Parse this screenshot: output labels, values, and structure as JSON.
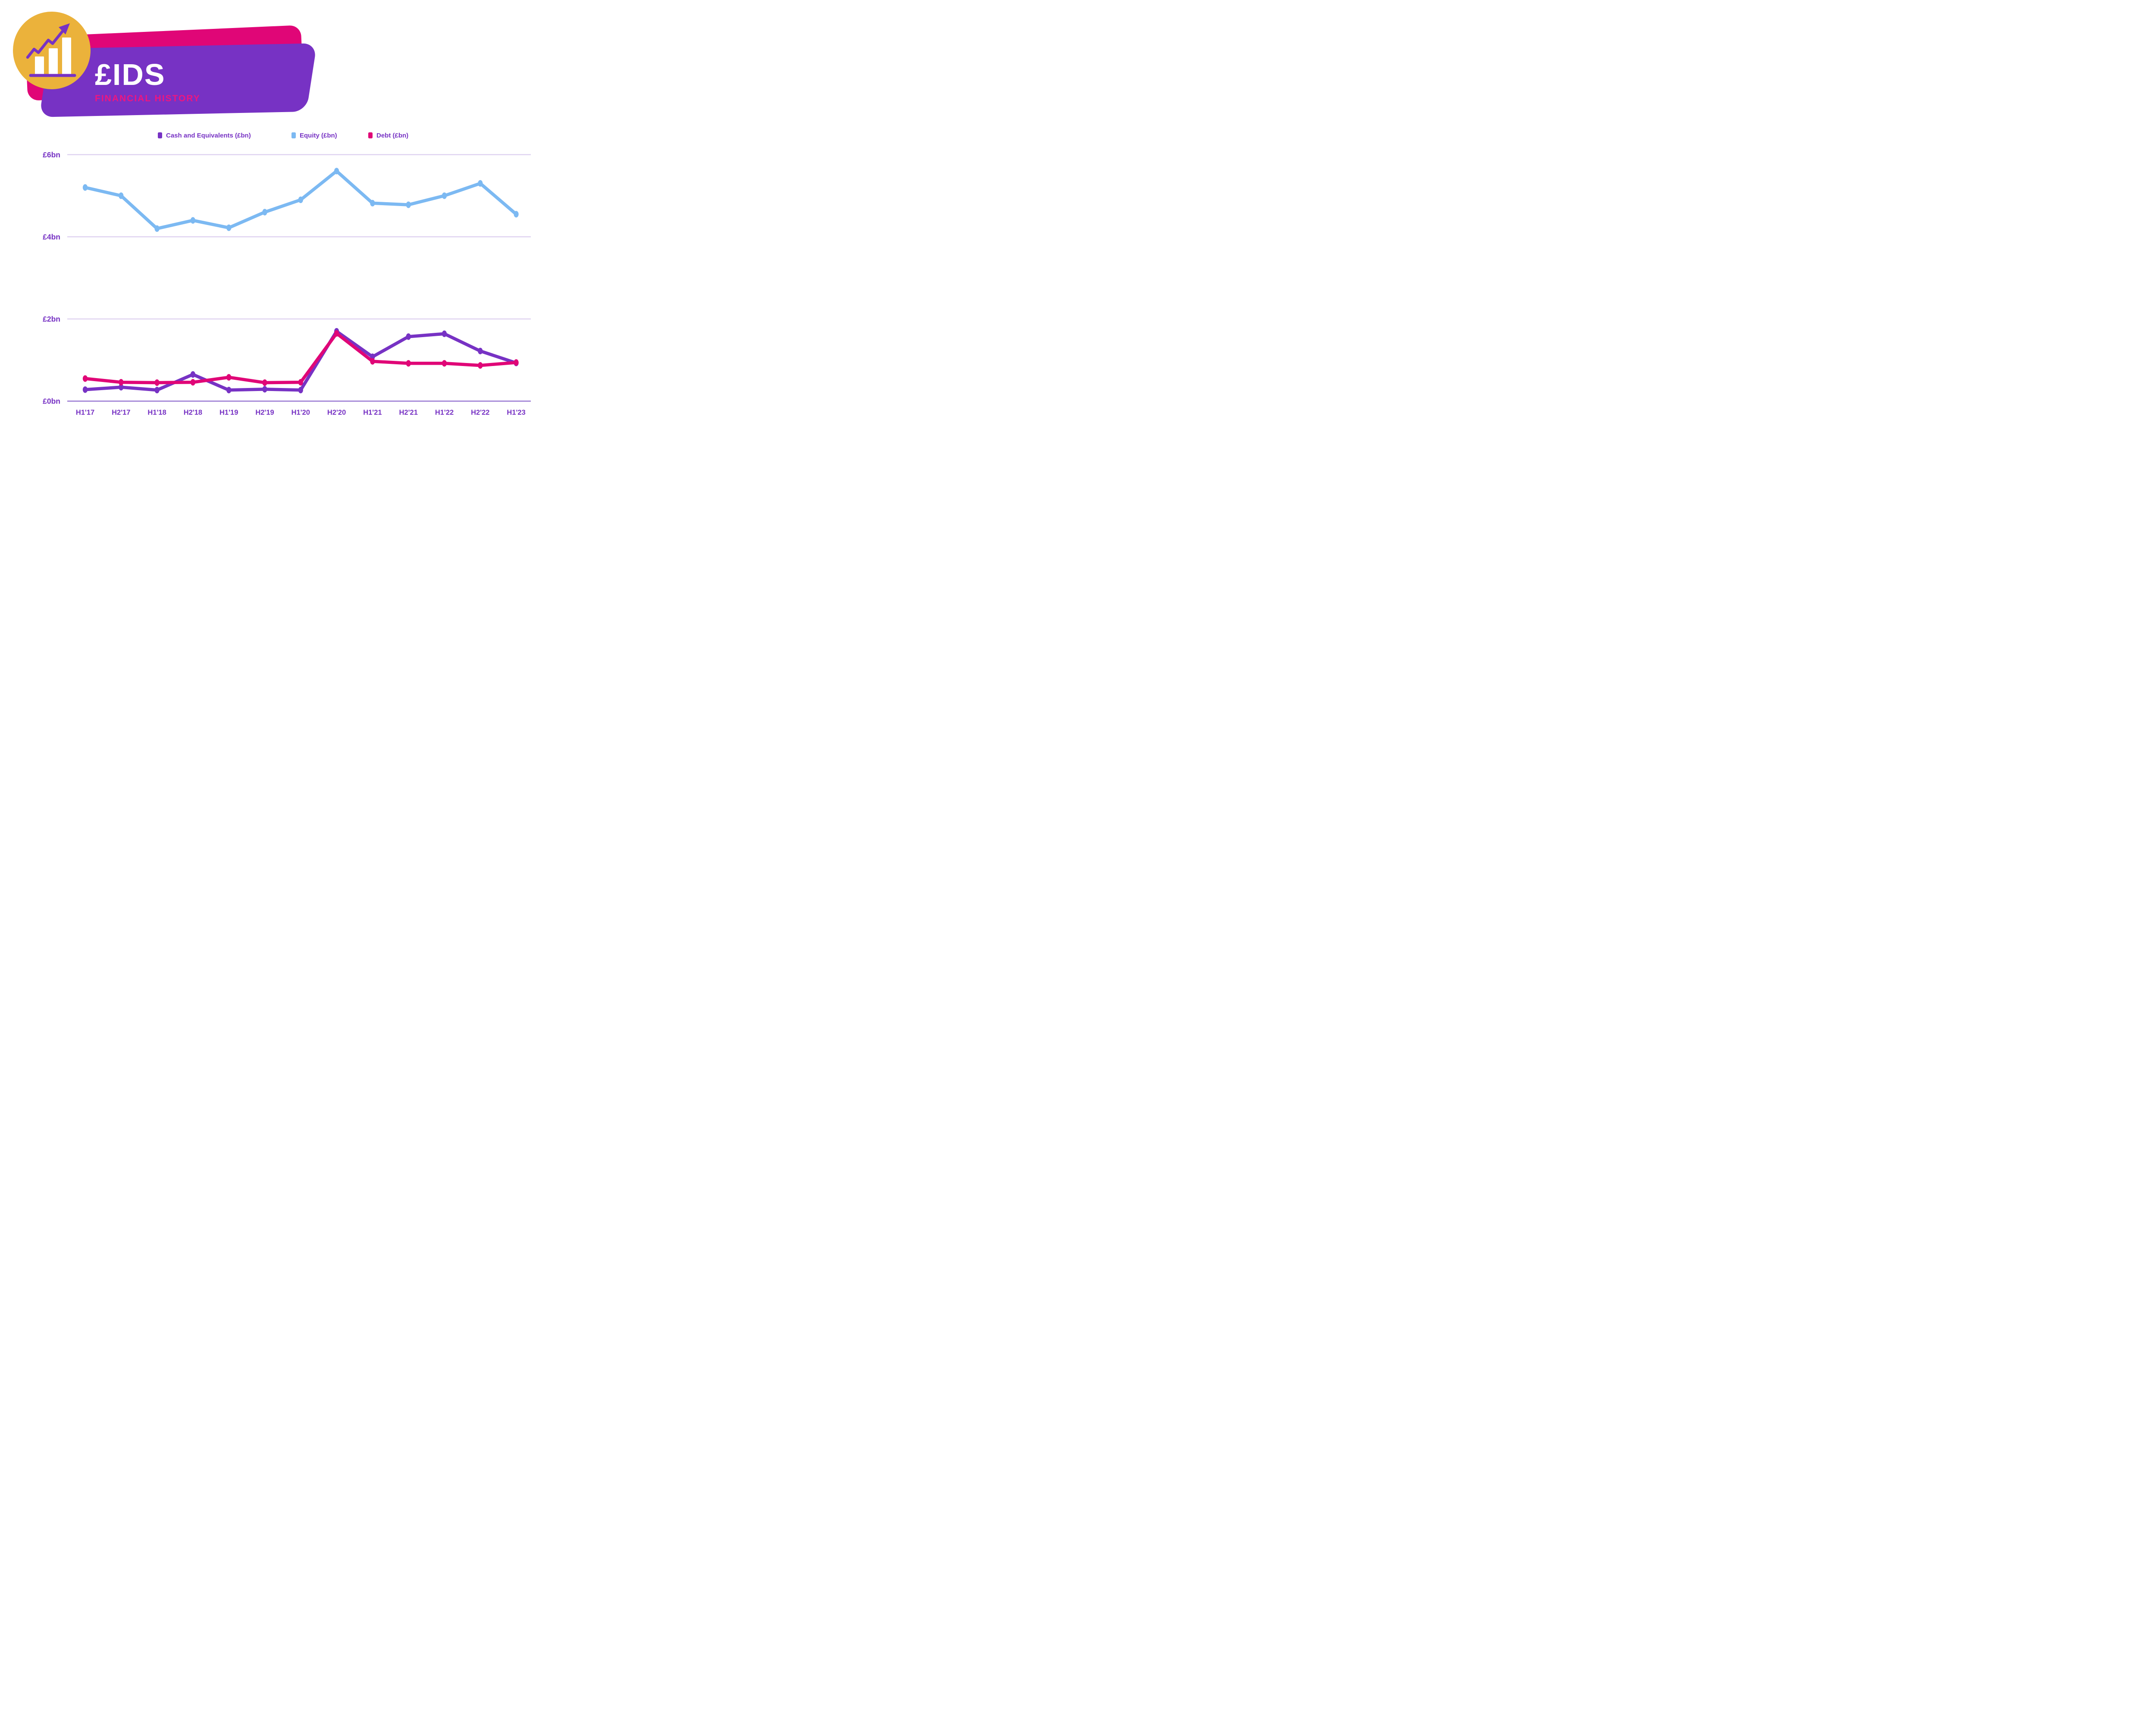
{
  "header": {
    "title": "£IDS",
    "subtitle": "FINANCIAL HISTORY",
    "logo": "growth-chart-icon"
  },
  "colors": {
    "purple": "#7732C4",
    "pink": "#E00677",
    "blue": "#7CB9F2",
    "yellow": "#EBB23B",
    "white": "#FFFFFF",
    "gridline": "#DFD3F0",
    "zero_axis": "#A78BD9",
    "axis_text": "#7732C4",
    "subtitle_pink": "#ED1680"
  },
  "legend": [
    {
      "label": "Cash and Equivalents (£bn)",
      "color": "#7732C4"
    },
    {
      "label": "Equity (£bn)",
      "color": "#7CB9F2"
    },
    {
      "label": "Debt (£bn)",
      "color": "#E00677"
    }
  ],
  "chart_data": {
    "type": "line",
    "title": "£IDS Financial History",
    "categories": [
      "H1'17",
      "H2'17",
      "H1'18",
      "H2'18",
      "H1'19",
      "H2'19",
      "H1'20",
      "H2'20",
      "H1'21",
      "H2'21",
      "H1'22",
      "H2'22",
      "H1'23"
    ],
    "series": [
      {
        "name": "Cash and Equivalents (£bn)",
        "color": "#7732C4",
        "values": [
          0.28,
          0.34,
          0.27,
          0.65,
          0.27,
          0.29,
          0.27,
          1.7,
          1.08,
          1.57,
          1.64,
          1.22,
          0.93
        ]
      },
      {
        "name": "Equity (£bn)",
        "color": "#7CB9F2",
        "values": [
          5.2,
          5.0,
          4.2,
          4.4,
          4.22,
          4.6,
          4.9,
          5.6,
          4.82,
          4.78,
          5.0,
          5.3,
          4.55
        ]
      },
      {
        "name": "Debt (£bn)",
        "color": "#E00677",
        "values": [
          0.55,
          0.46,
          0.45,
          0.46,
          0.58,
          0.45,
          0.46,
          1.65,
          0.97,
          0.92,
          0.92,
          0.87,
          0.94
        ]
      }
    ],
    "y_ticks": [
      {
        "value": 6,
        "label": "£6bn"
      },
      {
        "value": 4,
        "label": "£4bn"
      },
      {
        "value": 2,
        "label": "£2bn"
      },
      {
        "value": 0,
        "label": "£0bn"
      }
    ],
    "xlabel": "",
    "ylabel": "",
    "ylim": [
      0,
      6.3
    ],
    "grid": true,
    "legend_position": "top"
  }
}
